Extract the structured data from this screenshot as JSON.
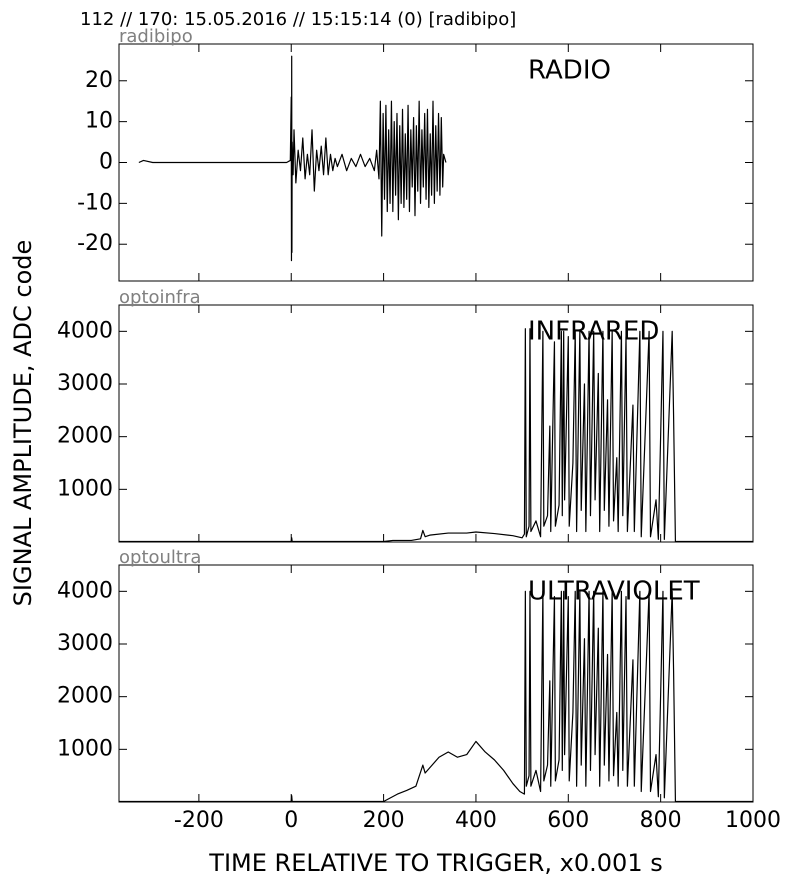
{
  "title": "112 // 170:   15.05.2016 // 15:15:14 (0)  [radibipo]",
  "ylabel": "SIGNAL AMPLITUDE,  ADC code",
  "xlabel": "TIME RELATIVE TO TRIGGER,   x0.001 s",
  "chart_data": [
    {
      "type": "line",
      "subtitle": "radibipo",
      "title": "RADIO",
      "color": "#000000",
      "xlim": [
        -373,
        1000
      ],
      "xticks": [
        -200,
        0,
        200,
        400,
        600,
        800,
        1000
      ],
      "ylim": [
        -29,
        29
      ],
      "yticks": [
        -20,
        -10,
        0,
        10,
        20
      ],
      "x": [
        -330,
        -320,
        -300,
        -10,
        -2,
        0,
        0.5,
        1,
        1.5,
        2,
        4,
        6,
        10,
        15,
        20,
        25,
        30,
        35,
        40,
        45,
        50,
        55,
        60,
        65,
        70,
        75,
        80,
        85,
        90,
        95,
        100,
        110,
        120,
        130,
        140,
        150,
        160,
        170,
        180,
        185,
        190,
        193,
        196,
        199,
        202,
        205,
        208,
        211,
        214,
        217,
        220,
        223,
        226,
        229,
        232,
        235,
        238,
        241,
        244,
        247,
        250,
        253,
        256,
        259,
        262,
        265,
        268,
        271,
        274,
        277,
        280,
        283,
        286,
        289,
        292,
        295,
        298,
        301,
        304,
        307,
        310,
        313,
        316,
        319,
        322,
        325,
        328,
        330,
        335
      ],
      "values": [
        0,
        0.5,
        0,
        0,
        0.5,
        16,
        -24,
        26,
        -22,
        5,
        -3,
        8,
        -5,
        3,
        -2,
        6,
        -4,
        2,
        -3,
        8,
        -7,
        3,
        -2,
        4,
        -3,
        6,
        -3,
        2,
        -2,
        1,
        -1,
        2,
        -2,
        1,
        -1,
        2,
        -1,
        1,
        -2,
        3,
        -4,
        15,
        -18,
        12,
        -9,
        14,
        -12,
        8,
        -10,
        15,
        -12,
        10,
        -8,
        12,
        -14,
        9,
        -10,
        13,
        -11,
        7,
        -9,
        14,
        -12,
        8,
        -6,
        11,
        -13,
        9,
        -7,
        15,
        -10,
        8,
        -6,
        12,
        -9,
        13,
        -11,
        7,
        -8,
        15,
        -10,
        9,
        -7,
        12,
        -8,
        11,
        -6,
        2,
        0
      ]
    },
    {
      "type": "line",
      "subtitle": "optoinfra",
      "title": "INFRARED",
      "color": "#000000",
      "xlim": [
        -373,
        1000
      ],
      "xticks": [
        -200,
        0,
        200,
        400,
        600,
        800,
        1000
      ],
      "ylim": [
        0,
        4500
      ],
      "yticks": [
        1000,
        2000,
        3000,
        4000
      ],
      "x": [
        -373,
        0,
        1,
        2,
        200,
        220,
        260,
        280,
        285,
        290,
        300,
        340,
        380,
        400,
        440,
        480,
        500,
        505,
        507,
        509,
        515,
        517,
        519,
        530,
        540,
        545,
        547,
        555,
        560,
        562,
        570,
        572,
        580,
        585,
        587,
        590,
        592,
        600,
        602,
        610,
        615,
        618,
        625,
        628,
        635,
        638,
        645,
        648,
        655,
        658,
        665,
        668,
        675,
        678,
        685,
        688,
        695,
        698,
        705,
        708,
        715,
        718,
        725,
        728,
        740,
        743,
        755,
        758,
        775,
        778,
        790,
        795,
        805,
        808,
        825,
        828,
        832,
        1000
      ],
      "values": [
        10,
        10,
        80,
        10,
        10,
        30,
        30,
        60,
        220,
        100,
        130,
        170,
        170,
        190,
        160,
        120,
        80,
        150,
        4050,
        100,
        300,
        4050,
        200,
        400,
        100,
        4000,
        300,
        500,
        2200,
        200,
        3800,
        300,
        700,
        4000,
        500,
        4000,
        800,
        3900,
        300,
        1500,
        4000,
        200,
        4000,
        600,
        3000,
        200,
        4000,
        500,
        4000,
        800,
        3200,
        200,
        4000,
        600,
        2700,
        300,
        4000,
        400,
        1600,
        200,
        4000,
        500,
        3900,
        200,
        2600,
        200,
        4000,
        100,
        4000,
        100,
        800,
        50,
        4000,
        50,
        4000,
        2400,
        10,
        10
      ]
    },
    {
      "type": "line",
      "subtitle": "optoultra",
      "title": "ULTRAVIOLET",
      "color": "#000000",
      "xlim": [
        -373,
        1000
      ],
      "xticks": [
        -200,
        0,
        200,
        400,
        600,
        800,
        1000
      ],
      "ylim": [
        0,
        4500
      ],
      "yticks": [
        1000,
        2000,
        3000,
        4000
      ],
      "x": [
        -373,
        0,
        1,
        2,
        200,
        230,
        250,
        270,
        285,
        290,
        300,
        320,
        340,
        360,
        380,
        400,
        420,
        440,
        460,
        480,
        495,
        505,
        507,
        509,
        515,
        517,
        519,
        530,
        540,
        545,
        547,
        555,
        560,
        562,
        570,
        572,
        580,
        585,
        587,
        590,
        592,
        600,
        602,
        610,
        615,
        618,
        625,
        628,
        635,
        638,
        645,
        648,
        655,
        658,
        665,
        668,
        675,
        678,
        685,
        688,
        695,
        698,
        705,
        708,
        715,
        718,
        725,
        728,
        740,
        743,
        755,
        758,
        775,
        778,
        790,
        795,
        805,
        808,
        825,
        828,
        832,
        1000
      ],
      "values": [
        10,
        10,
        120,
        10,
        10,
        150,
        220,
        300,
        700,
        550,
        650,
        850,
        950,
        850,
        900,
        1150,
        950,
        800,
        600,
        350,
        200,
        150,
        4000,
        300,
        500,
        4000,
        300,
        600,
        200,
        4000,
        400,
        700,
        2300,
        300,
        3900,
        400,
        800,
        4000,
        600,
        4000,
        900,
        3900,
        400,
        1700,
        4000,
        300,
        4000,
        700,
        3100,
        300,
        4000,
        600,
        4000,
        900,
        3300,
        300,
        4000,
        700,
        2800,
        400,
        4000,
        500,
        1700,
        300,
        4000,
        600,
        3900,
        300,
        2700,
        300,
        4000,
        200,
        4000,
        200,
        900,
        100,
        4000,
        80,
        4000,
        2500,
        10,
        10
      ]
    }
  ]
}
